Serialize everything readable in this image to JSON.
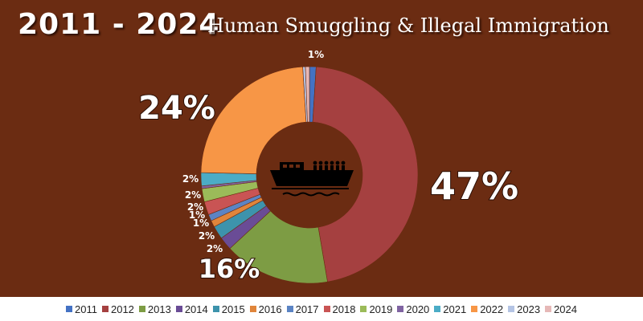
{
  "header": {
    "years": "2011 - 2024",
    "subtitle": "Human Smuggling & Illegal Immigration"
  },
  "center_icon": "boat-with-passengers-icon",
  "chart_data": {
    "type": "pie",
    "donut": true,
    "categories": [
      "2011",
      "2012",
      "2013",
      "2014",
      "2015",
      "2016",
      "2017",
      "2018",
      "2019",
      "2020",
      "2021",
      "2022",
      "2023",
      "2024"
    ],
    "values": [
      1,
      47,
      16,
      2,
      2,
      1,
      1,
      2,
      2,
      0.4,
      2,
      24,
      0.4,
      0.6
    ],
    "colors": [
      "#4472c4",
      "#a54040",
      "#7d9c44",
      "#6a4c96",
      "#3d93ac",
      "#e0853b",
      "#5b84c4",
      "#c95454",
      "#9bbb59",
      "#8064a2",
      "#4bacc6",
      "#f79646",
      "#b4c4e4",
      "#e6b8b7"
    ],
    "data_labels": [
      {
        "text": "1%"
      },
      {
        "text": "47%"
      },
      {
        "text": "16%"
      },
      {
        "text": "2%"
      },
      {
        "text": "2%"
      },
      {
        "text": "1%"
      },
      {
        "text": "1%"
      },
      {
        "text": "2%"
      },
      {
        "text": "2%"
      },
      {
        "text": ""
      },
      {
        "text": "2%"
      },
      {
        "text": "24%"
      },
      {
        "text": ""
      },
      {
        "text": ""
      }
    ],
    "legend": "bottom"
  }
}
